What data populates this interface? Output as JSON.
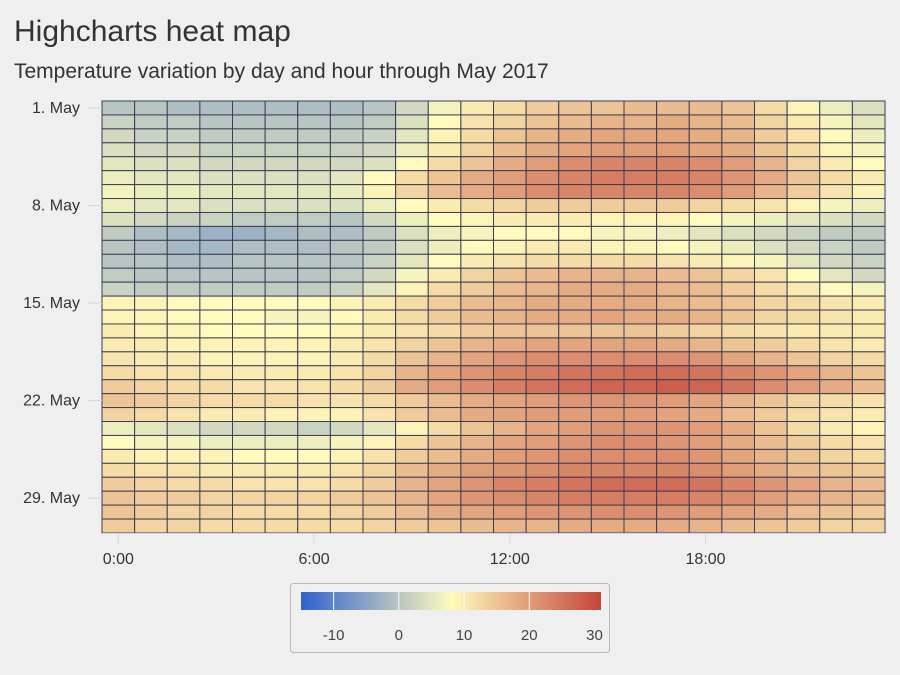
{
  "chart_data": {
    "type": "heatmap",
    "title": "Highcharts heat map",
    "subtitle": "Temperature variation by day and hour through May 2017",
    "x_axis": {
      "label": "",
      "min": 0,
      "max": 23,
      "tick_labels": [
        "0:00",
        "6:00",
        "12:00",
        "18:00"
      ],
      "tick_hours": [
        0,
        6,
        12,
        18
      ]
    },
    "y_axis": {
      "label": "",
      "categories_count": 31,
      "tick_labels": [
        "1. May",
        "8. May",
        "15. May",
        "22. May",
        "29. May"
      ],
      "tick_days": [
        1,
        8,
        15,
        22,
        29
      ]
    },
    "color_axis": {
      "min": -15,
      "max": 31,
      "stops": [
        "#3060cf",
        "#fffbbc",
        "#c4463a"
      ],
      "tick_labels": [
        "-10",
        "0",
        "10",
        "20",
        "30"
      ],
      "tick_values": [
        -10,
        0,
        10,
        20,
        30
      ]
    },
    "days": [
      {
        "day": 1,
        "temps": [
          0,
          0,
          -1,
          -1,
          -1,
          -1,
          -1,
          -1,
          0,
          3,
          7,
          10,
          12,
          14,
          15,
          15,
          16,
          16,
          16,
          15,
          12,
          9,
          6,
          4
        ]
      },
      {
        "day": 2,
        "temps": [
          2,
          1,
          1,
          0,
          0,
          0,
          0,
          0,
          1,
          4,
          8,
          11,
          13,
          15,
          16,
          17,
          17,
          18,
          17,
          16,
          13,
          10,
          7,
          5
        ]
      },
      {
        "day": 3,
        "temps": [
          3,
          2,
          2,
          1,
          1,
          1,
          1,
          1,
          2,
          5,
          9,
          12,
          15,
          17,
          18,
          19,
          19,
          19,
          18,
          17,
          14,
          11,
          8,
          6
        ]
      },
      {
        "day": 4,
        "temps": [
          4,
          3,
          3,
          2,
          2,
          2,
          2,
          2,
          3,
          6,
          10,
          13,
          16,
          18,
          19,
          20,
          20,
          20,
          19,
          18,
          15,
          12,
          9,
          7
        ]
      },
      {
        "day": 5,
        "temps": [
          5,
          4,
          4,
          3,
          3,
          3,
          3,
          3,
          4,
          8,
          12,
          15,
          18,
          20,
          22,
          23,
          23,
          23,
          22,
          20,
          17,
          13,
          10,
          8
        ]
      },
      {
        "day": 6,
        "temps": [
          6,
          5,
          5,
          4,
          4,
          4,
          4,
          5,
          8,
          12,
          15,
          18,
          20,
          22,
          23,
          24,
          24,
          24,
          23,
          21,
          18,
          15,
          12,
          10
        ]
      },
      {
        "day": 7,
        "temps": [
          7,
          6,
          6,
          5,
          5,
          5,
          5,
          6,
          9,
          13,
          16,
          18,
          20,
          22,
          23,
          23,
          23,
          23,
          22,
          20,
          17,
          14,
          11,
          9
        ]
      },
      {
        "day": 8,
        "temps": [
          6,
          5,
          5,
          4,
          4,
          4,
          4,
          4,
          6,
          8,
          10,
          12,
          13,
          14,
          14,
          14,
          14,
          14,
          13,
          12,
          11,
          9,
          7,
          6
        ]
      },
      {
        "day": 9,
        "temps": [
          4,
          3,
          2,
          2,
          1,
          1,
          1,
          0,
          3,
          6,
          8,
          9,
          10,
          10,
          10,
          9,
          9,
          9,
          8,
          7,
          6,
          5,
          4,
          3
        ]
      },
      {
        "day": 10,
        "temps": [
          1,
          -1,
          -2,
          -3,
          -3,
          -2,
          -1,
          -1,
          1,
          4,
          6,
          7,
          8,
          8,
          8,
          7,
          7,
          6,
          5,
          4,
          3,
          2,
          1,
          1
        ]
      },
      {
        "day": 11,
        "temps": [
          0,
          -1,
          -2,
          -2,
          -1,
          -1,
          -1,
          0,
          1,
          4,
          6,
          8,
          9,
          10,
          10,
          9,
          9,
          8,
          7,
          6,
          4,
          3,
          2,
          1
        ]
      },
      {
        "day": 12,
        "temps": [
          0,
          0,
          -1,
          -1,
          0,
          0,
          0,
          0,
          2,
          5,
          8,
          10,
          11,
          12,
          12,
          12,
          12,
          11,
          10,
          9,
          7,
          5,
          3,
          2
        ]
      },
      {
        "day": 13,
        "temps": [
          1,
          0,
          0,
          0,
          0,
          0,
          0,
          1,
          3,
          7,
          10,
          13,
          15,
          16,
          17,
          17,
          17,
          16,
          15,
          13,
          11,
          8,
          5,
          3
        ]
      },
      {
        "day": 14,
        "temps": [
          2,
          1,
          1,
          1,
          1,
          1,
          1,
          2,
          5,
          9,
          12,
          14,
          16,
          17,
          18,
          18,
          18,
          17,
          16,
          14,
          12,
          10,
          8,
          7
        ]
      },
      {
        "day": 15,
        "temps": [
          9,
          9,
          8,
          8,
          8,
          8,
          8,
          9,
          10,
          12,
          14,
          16,
          17,
          18,
          18,
          18,
          18,
          17,
          16,
          15,
          13,
          12,
          11,
          10
        ]
      },
      {
        "day": 16,
        "temps": [
          9,
          9,
          8,
          8,
          8,
          7,
          7,
          8,
          10,
          12,
          14,
          16,
          17,
          18,
          18,
          19,
          18,
          18,
          17,
          15,
          13,
          12,
          11,
          10
        ]
      },
      {
        "day": 17,
        "temps": [
          10,
          9,
          9,
          8,
          8,
          8,
          8,
          9,
          10,
          11,
          12,
          14,
          15,
          15,
          15,
          15,
          15,
          14,
          13,
          12,
          11,
          10,
          10,
          10
        ]
      },
      {
        "day": 18,
        "temps": [
          10,
          10,
          9,
          9,
          9,
          9,
          9,
          10,
          11,
          13,
          15,
          17,
          18,
          19,
          19,
          19,
          19,
          18,
          17,
          15,
          14,
          12,
          11,
          10
        ]
      },
      {
        "day": 19,
        "temps": [
          11,
          10,
          10,
          9,
          9,
          9,
          9,
          10,
          12,
          15,
          17,
          19,
          21,
          22,
          22,
          22,
          22,
          22,
          21,
          19,
          17,
          15,
          13,
          12
        ]
      },
      {
        "day": 20,
        "temps": [
          12,
          11,
          11,
          10,
          10,
          10,
          10,
          11,
          13,
          17,
          19,
          21,
          23,
          24,
          25,
          25,
          26,
          26,
          25,
          23,
          21,
          19,
          17,
          15
        ]
      },
      {
        "day": 21,
        "temps": [
          14,
          13,
          12,
          12,
          11,
          11,
          11,
          12,
          14,
          18,
          20,
          22,
          24,
          25,
          26,
          27,
          27,
          28,
          27,
          25,
          22,
          20,
          18,
          16
        ]
      },
      {
        "day": 22,
        "temps": [
          15,
          14,
          13,
          12,
          12,
          12,
          11,
          11,
          12,
          14,
          16,
          18,
          19,
          20,
          21,
          21,
          21,
          20,
          19,
          17,
          15,
          13,
          12,
          11
        ]
      },
      {
        "day": 23,
        "temps": [
          13,
          12,
          11,
          10,
          10,
          9,
          9,
          9,
          11,
          14,
          16,
          18,
          19,
          20,
          20,
          20,
          20,
          19,
          18,
          16,
          14,
          12,
          11,
          10
        ]
      },
      {
        "day": 24,
        "temps": [
          6,
          5,
          4,
          3,
          3,
          3,
          2,
          3,
          5,
          9,
          12,
          15,
          17,
          19,
          20,
          21,
          21,
          21,
          20,
          18,
          15,
          12,
          10,
          9
        ]
      },
      {
        "day": 25,
        "temps": [
          8,
          7,
          7,
          6,
          6,
          6,
          6,
          7,
          9,
          12,
          15,
          17,
          19,
          20,
          21,
          22,
          22,
          21,
          20,
          18,
          16,
          14,
          12,
          11
        ]
      },
      {
        "day": 26,
        "temps": [
          10,
          9,
          9,
          9,
          8,
          8,
          8,
          9,
          11,
          14,
          16,
          18,
          20,
          21,
          22,
          22,
          22,
          22,
          21,
          19,
          17,
          15,
          13,
          12
        ]
      },
      {
        "day": 27,
        "temps": [
          12,
          11,
          11,
          10,
          10,
          10,
          10,
          11,
          13,
          16,
          18,
          20,
          21,
          22,
          23,
          23,
          23,
          23,
          22,
          20,
          18,
          16,
          15,
          14
        ]
      },
      {
        "day": 28,
        "temps": [
          14,
          13,
          12,
          12,
          11,
          11,
          11,
          12,
          14,
          17,
          19,
          21,
          23,
          24,
          25,
          26,
          26,
          26,
          25,
          23,
          21,
          19,
          17,
          16
        ]
      },
      {
        "day": 29,
        "temps": [
          15,
          14,
          14,
          13,
          13,
          13,
          13,
          14,
          15,
          17,
          19,
          21,
          22,
          23,
          24,
          24,
          24,
          24,
          23,
          22,
          20,
          18,
          17,
          16
        ]
      },
      {
        "day": 30,
        "temps": [
          15,
          14,
          13,
          13,
          12,
          12,
          12,
          13,
          14,
          16,
          18,
          19,
          20,
          21,
          21,
          22,
          22,
          21,
          20,
          19,
          18,
          16,
          15,
          14
        ]
      },
      {
        "day": 31,
        "temps": [
          14,
          13,
          13,
          12,
          12,
          12,
          12,
          12,
          13,
          14,
          15,
          16,
          17,
          17,
          18,
          18,
          18,
          18,
          17,
          16,
          15,
          14,
          13,
          13
        ]
      }
    ]
  }
}
